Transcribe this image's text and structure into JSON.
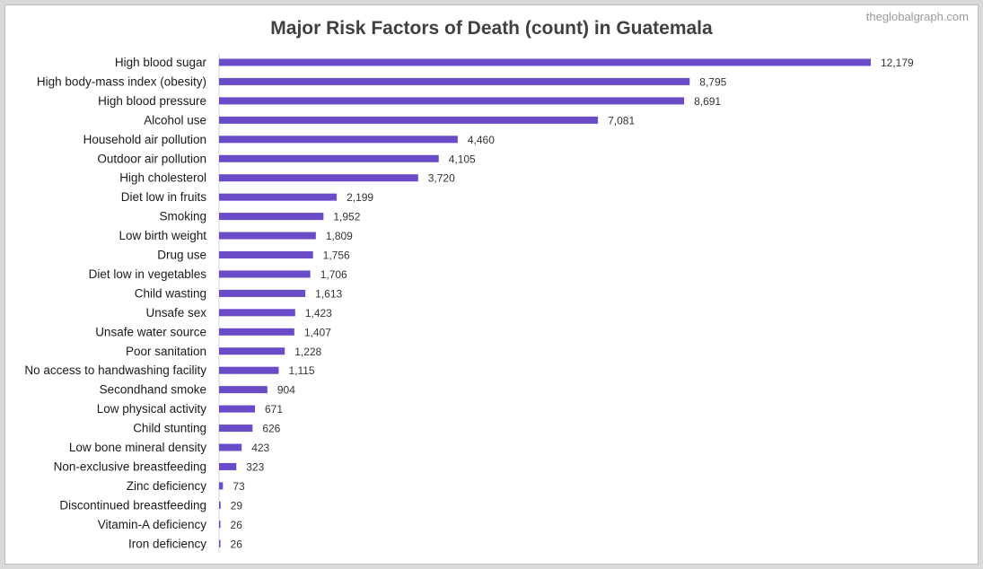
{
  "watermark": "theglobalgraph.com",
  "chart_data": {
    "type": "bar",
    "orientation": "horizontal",
    "title": "Major Risk Factors of Death (count) in Guatemala",
    "xlabel": "",
    "ylabel": "",
    "grid": false,
    "xlim": [
      0,
      12179
    ],
    "bar_color": "#6a4bc8",
    "categories": [
      "High blood sugar",
      "High body-mass index (obesity)",
      "High blood pressure",
      "Alcohol use",
      "Household air pollution",
      "Outdoor air pollution",
      "High cholesterol",
      "Diet low in fruits",
      "Smoking",
      "Low birth weight",
      "Drug use",
      "Diet low in vegetables",
      "Child wasting",
      "Unsafe sex",
      "Unsafe water source",
      "Poor sanitation",
      "No access to handwashing facility",
      "Secondhand smoke",
      "Low physical activity",
      "Child stunting",
      "Low bone mineral density",
      "Non-exclusive breastfeeding",
      "Zinc deficiency",
      "Discontinued breastfeeding",
      "Vitamin-A deficiency",
      "Iron deficiency"
    ],
    "values": [
      12179,
      8795,
      8691,
      7081,
      4460,
      4105,
      3720,
      2199,
      1952,
      1809,
      1756,
      1706,
      1613,
      1423,
      1407,
      1228,
      1115,
      904,
      671,
      626,
      423,
      323,
      73,
      29,
      26,
      26
    ],
    "value_labels": [
      "12,179",
      "8,795",
      "8,691",
      "7,081",
      "4,460",
      "4,105",
      "3,720",
      "2,199",
      "1,952",
      "1,809",
      "1,756",
      "1,706",
      "1,613",
      "1,423",
      "1,407",
      "1,228",
      "1,115",
      "904",
      "671",
      "626",
      "423",
      "323",
      "73",
      "29",
      "26",
      "26"
    ]
  }
}
